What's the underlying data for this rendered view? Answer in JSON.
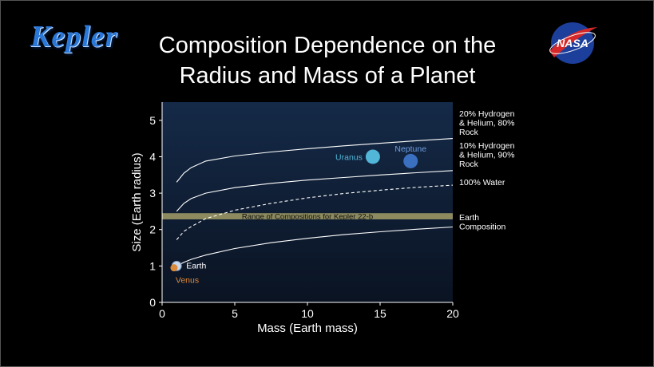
{
  "logo": {
    "text": "Kepler"
  },
  "title_lines": [
    "Composition Dependence on the",
    "Radius and Mass of a Planet"
  ],
  "nasa_logo": {
    "text": "NASA"
  },
  "colors": {
    "plot_top": "#152a48",
    "plot_bottom": "#0a1322",
    "band": "#8c8a5e",
    "uranus": "#52b6d8",
    "neptune": "#3b6fc0",
    "venus_label": "#e08a3c",
    "neptune_label": "#6f9fe0"
  },
  "chart_data": {
    "type": "line",
    "xlabel": "Mass (Earth mass)",
    "ylabel": "Size (Earth radius)",
    "xlim": [
      0,
      20
    ],
    "ylim": [
      0,
      5.5
    ],
    "xticks": [
      "0",
      "5",
      "10",
      "15",
      "20"
    ],
    "yticks": [
      "0",
      "1",
      "2",
      "3",
      "4",
      "5"
    ],
    "series": [
      {
        "name": "20% Hydrogen & Helium, 80% Rock",
        "label_lines": [
          "20% Hydrogen",
          "& Helium, 80%",
          "Rock"
        ],
        "style": "solid",
        "x": [
          1,
          1.5,
          2,
          3,
          5,
          7.5,
          10,
          12.5,
          15,
          17.5,
          20
        ],
        "y": [
          3.3,
          3.55,
          3.7,
          3.88,
          4.02,
          4.13,
          4.22,
          4.3,
          4.37,
          4.44,
          4.5
        ]
      },
      {
        "name": "10% Hydrogen & Helium, 90% Rock",
        "label_lines": [
          "10% Hydrogen",
          "& Helium, 90%",
          "Rock"
        ],
        "style": "solid",
        "x": [
          1,
          1.5,
          2,
          3,
          5,
          7.5,
          10,
          12.5,
          15,
          17.5,
          20
        ],
        "y": [
          2.5,
          2.72,
          2.85,
          3.0,
          3.15,
          3.27,
          3.36,
          3.43,
          3.5,
          3.56,
          3.62
        ]
      },
      {
        "name": "100% Water",
        "label_lines": [
          "100% Water"
        ],
        "style": "dashed",
        "x": [
          1,
          1.5,
          2,
          3,
          5,
          7.5,
          10,
          12.5,
          15,
          17.5,
          20
        ],
        "y": [
          1.72,
          1.95,
          2.08,
          2.3,
          2.53,
          2.72,
          2.87,
          2.99,
          3.08,
          3.16,
          3.22
        ]
      },
      {
        "name": "Earth Composition",
        "label_lines": [
          "Earth",
          "Composition"
        ],
        "style": "solid",
        "x": [
          0.8,
          1,
          1.5,
          2,
          3,
          5,
          7.5,
          10,
          12.5,
          15,
          17.5,
          20
        ],
        "y": [
          0.95,
          1.0,
          1.1,
          1.18,
          1.3,
          1.48,
          1.64,
          1.76,
          1.86,
          1.94,
          2.01,
          2.07
        ]
      }
    ],
    "band": {
      "label": "Range of Compositions for Kepler 22-b",
      "y_range": [
        2.28,
        2.45
      ]
    },
    "planets": [
      {
        "name": "Uranus",
        "mass": 14.5,
        "radius": 4.0
      },
      {
        "name": "Neptune",
        "mass": 17.1,
        "radius": 3.88
      },
      {
        "name": "Earth",
        "mass": 1.0,
        "radius": 1.0
      },
      {
        "name": "Venus",
        "mass": 0.82,
        "radius": 0.95
      }
    ]
  }
}
